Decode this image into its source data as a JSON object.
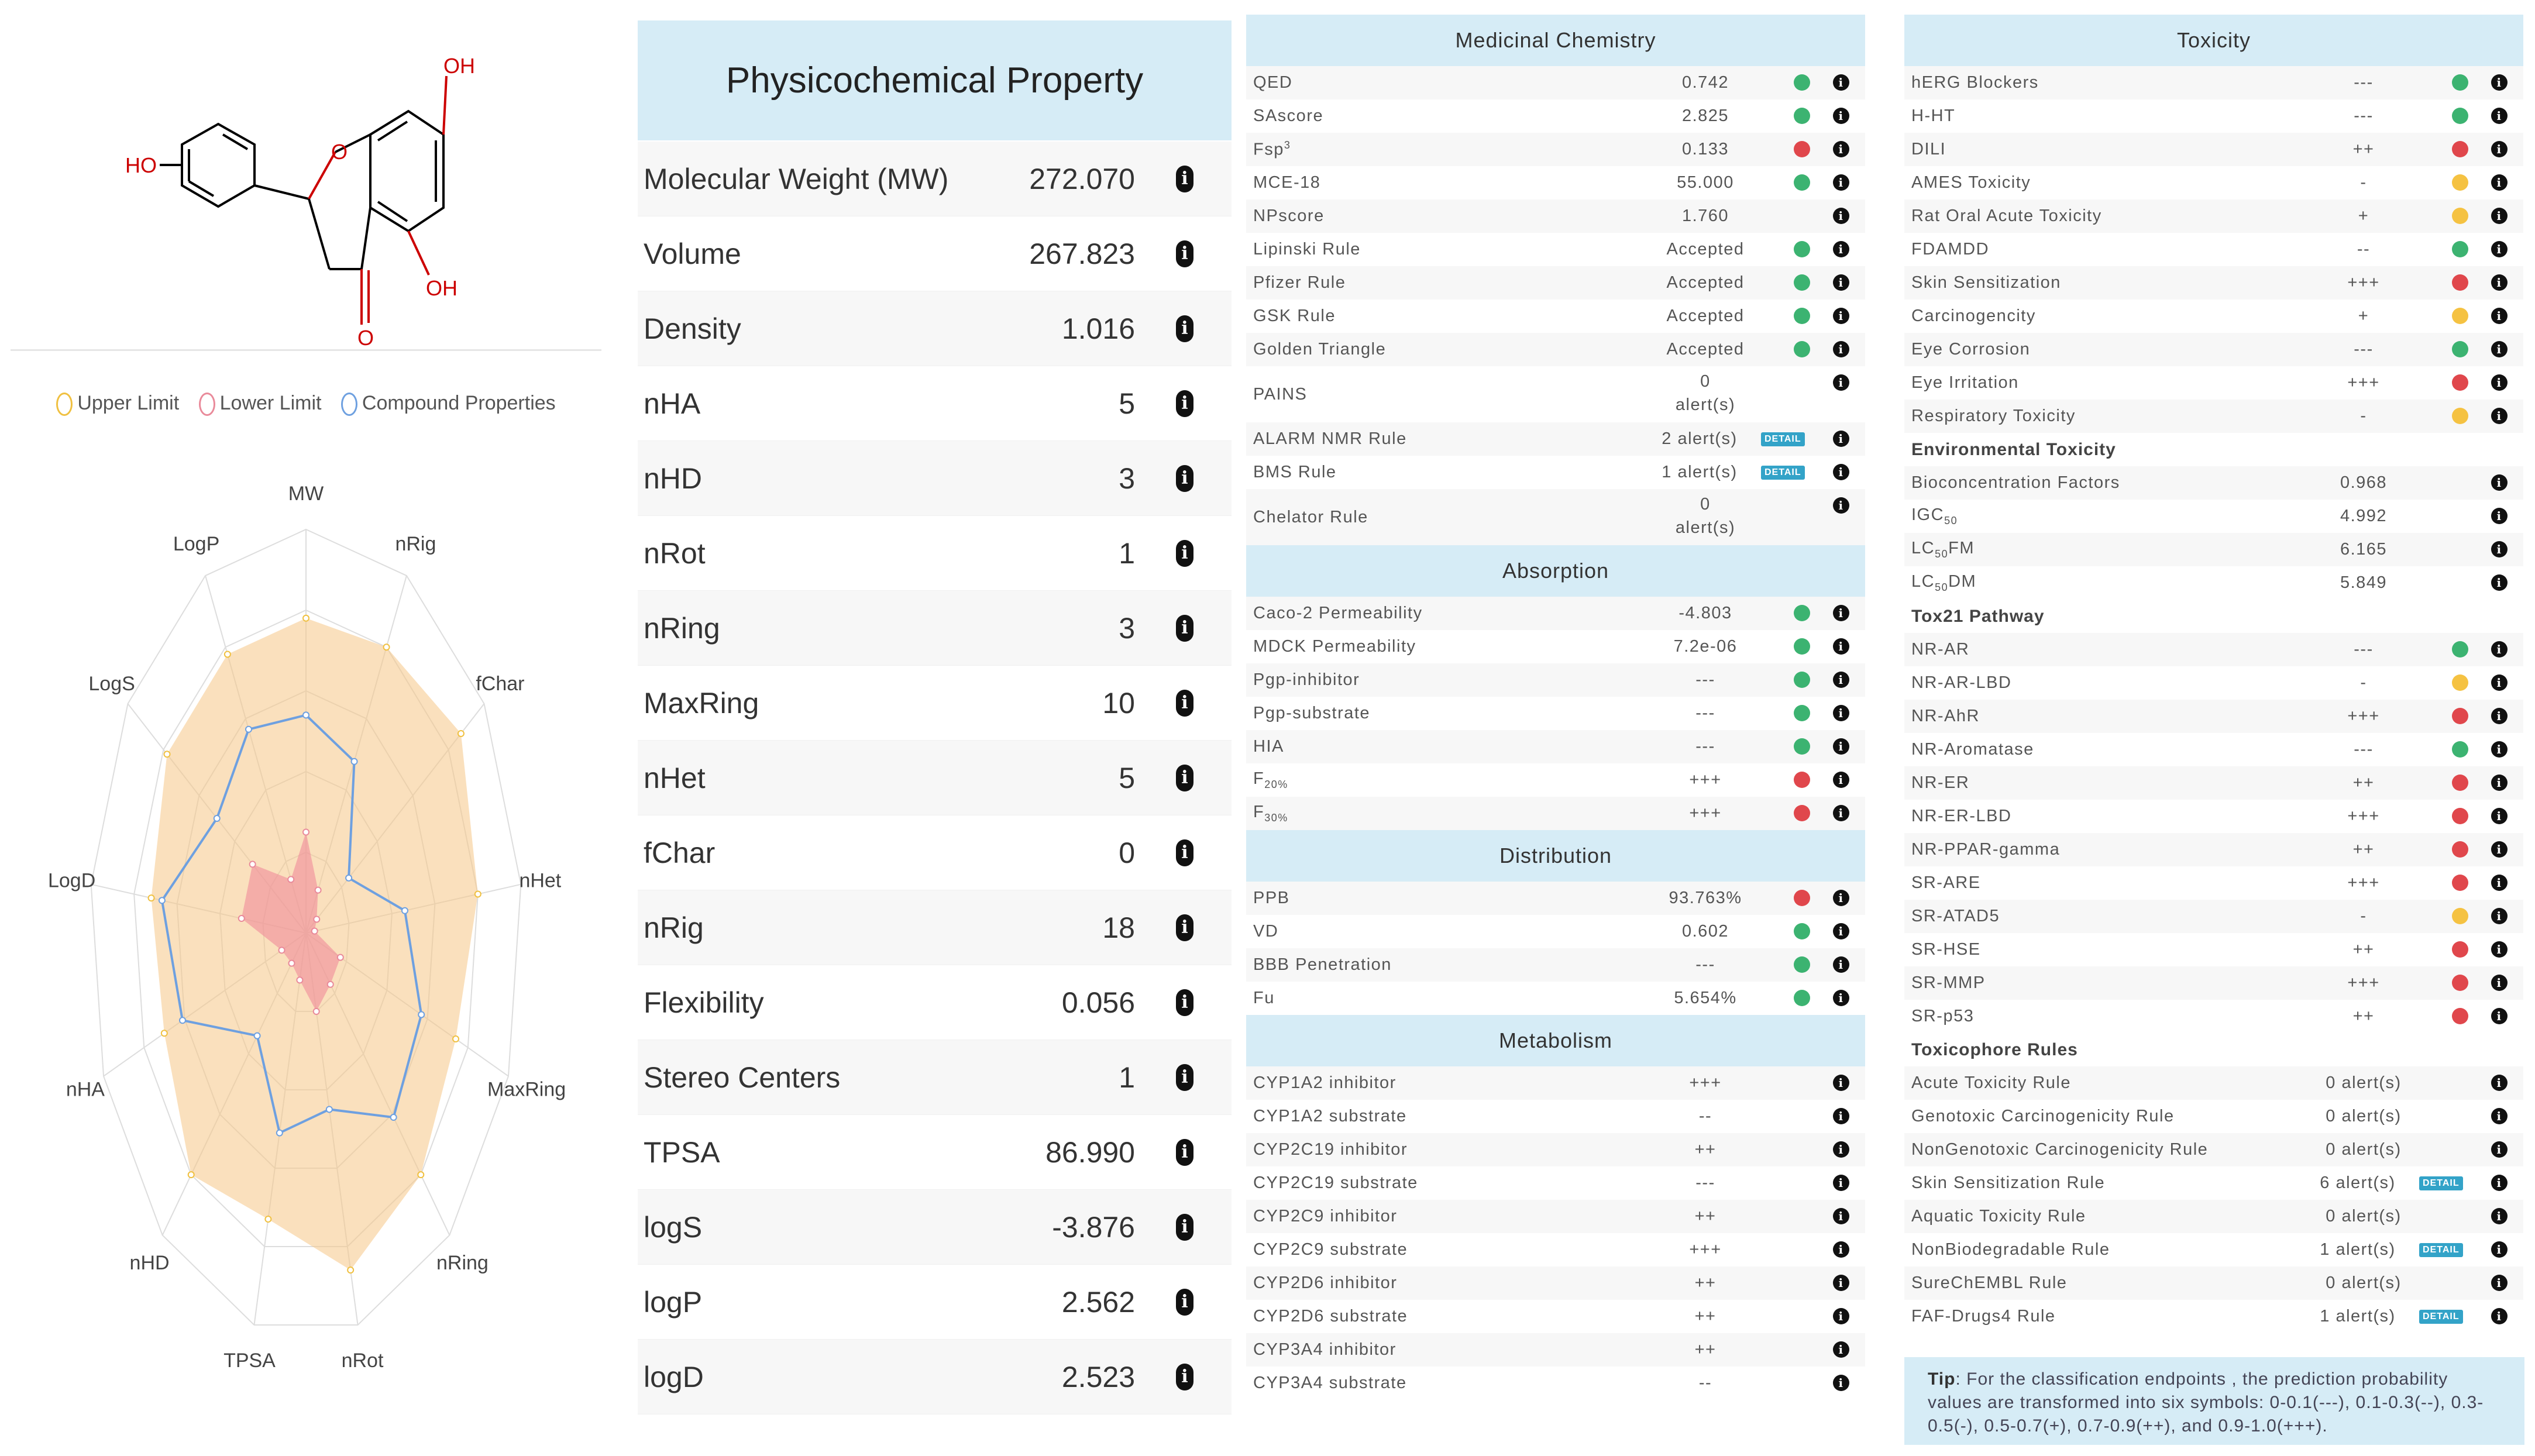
{
  "structure": {
    "labels": {
      "ho_left": "HO",
      "oh_top": "OH",
      "oh_bottom": "OH",
      "o_ring": "O",
      "o_keto": "O"
    }
  },
  "radar": {
    "legend": [
      {
        "label": "Upper Limit",
        "color": "#f0c040"
      },
      {
        "label": "Lower Limit",
        "color": "#e98a9a"
      },
      {
        "label": "Compound Properties",
        "color": "#6ea0e0"
      }
    ],
    "axes": [
      "MW",
      "nRig",
      "fChar",
      "nHet",
      "MaxRing",
      "nRing",
      "nRot",
      "TPSA",
      "nHD",
      "nHA",
      "LogD",
      "LogS",
      "LogP"
    ],
    "upper": [
      0.78,
      0.8,
      0.87,
      0.8,
      0.74,
      0.8,
      0.86,
      0.73,
      0.8,
      0.7,
      0.72,
      0.78,
      0.78
    ],
    "lower": [
      0.25,
      0.12,
      0.06,
      0.04,
      0.17,
      0.17,
      0.2,
      0.12,
      0.1,
      0.12,
      0.3,
      0.3,
      0.15
    ],
    "compound": [
      0.54,
      0.48,
      0.24,
      0.46,
      0.57,
      0.61,
      0.45,
      0.51,
      0.34,
      0.61,
      0.67,
      0.5,
      0.57
    ]
  },
  "physchem": {
    "title": "Physicochemical Property",
    "rows": [
      {
        "label": "Molecular Weight (MW)",
        "value": "272.070"
      },
      {
        "label": "Volume",
        "value": "267.823"
      },
      {
        "label": "Density",
        "value": "1.016"
      },
      {
        "label": "nHA",
        "value": "5"
      },
      {
        "label": "nHD",
        "value": "3"
      },
      {
        "label": "nRot",
        "value": "1"
      },
      {
        "label": "nRing",
        "value": "3"
      },
      {
        "label": "MaxRing",
        "value": "10"
      },
      {
        "label": "nHet",
        "value": "5"
      },
      {
        "label": "fChar",
        "value": "0"
      },
      {
        "label": "nRig",
        "value": "18"
      },
      {
        "label": "Flexibility",
        "value": "0.056"
      },
      {
        "label": "Stereo Centers",
        "value": "1"
      },
      {
        "label": "TPSA",
        "value": "86.990"
      },
      {
        "label": "logS",
        "value": "-3.876"
      },
      {
        "label": "logP",
        "value": "2.562"
      },
      {
        "label": "logD",
        "value": "2.523"
      }
    ]
  },
  "colors": {
    "green": "#3cb371",
    "red": "#e0474c",
    "yellow": "#f5c242",
    "header": "#d6ecf6",
    "detail": "#33a3c8"
  },
  "detail_label": "DETAIL",
  "medchem": {
    "title": "Medicinal Chemistry",
    "rows": [
      {
        "name": "QED",
        "value": "0.742",
        "dot": "green"
      },
      {
        "name": "SAscore",
        "value": "2.825",
        "dot": "green"
      },
      {
        "name": "Fsp",
        "sup": "3",
        "value": "0.133",
        "dot": "red"
      },
      {
        "name": "MCE-18",
        "value": "55.000",
        "dot": "green"
      },
      {
        "name": "NPscore",
        "value": "1.760",
        "dot": ""
      },
      {
        "name": "Lipinski Rule",
        "value": "Accepted",
        "dot": "green"
      },
      {
        "name": "Pfizer Rule",
        "value": "Accepted",
        "dot": "green"
      },
      {
        "name": "GSK Rule",
        "value": "Accepted",
        "dot": "green"
      },
      {
        "name": "Golden Triangle",
        "value": "Accepted",
        "dot": "green"
      },
      {
        "name": "PAINS",
        "value": "0",
        "value2": "alert(s)",
        "dot": "",
        "tall": true
      },
      {
        "name": "ALARM NMR Rule",
        "value": "2 alert(s)",
        "dot": "",
        "detail": true
      },
      {
        "name": "BMS Rule",
        "value": "1 alert(s)",
        "dot": "",
        "detail": true
      },
      {
        "name": "Chelator Rule",
        "value": "0",
        "value2": "alert(s)",
        "dot": "",
        "tall": true
      }
    ]
  },
  "absorption": {
    "title": "Absorption",
    "rows": [
      {
        "name": "Caco-2 Permeability",
        "value": "-4.803",
        "dot": "green"
      },
      {
        "name": "MDCK Permeability",
        "value": "7.2e-06",
        "dot": "green"
      },
      {
        "name": "Pgp-inhibitor",
        "value": "---",
        "dot": "green"
      },
      {
        "name": "Pgp-substrate",
        "value": "---",
        "dot": "green"
      },
      {
        "name": "HIA",
        "value": "---",
        "dot": "green"
      },
      {
        "name": "F",
        "sub": "20%",
        "value": "+++",
        "dot": "red"
      },
      {
        "name": "F",
        "sub": "30%",
        "value": "+++",
        "dot": "red"
      }
    ]
  },
  "distribution": {
    "title": "Distribution",
    "rows": [
      {
        "name": "PPB",
        "value": "93.763%",
        "dot": "red"
      },
      {
        "name": "VD",
        "value": "0.602",
        "dot": "green"
      },
      {
        "name": "BBB Penetration",
        "value": "---",
        "dot": "green"
      },
      {
        "name": "Fu",
        "value": "5.654%",
        "dot": "green"
      }
    ]
  },
  "metabolism": {
    "title": "Metabolism",
    "rows": [
      {
        "name": "CYP1A2 inhibitor",
        "value": "+++",
        "dot": ""
      },
      {
        "name": "CYP1A2 substrate",
        "value": "--",
        "dot": ""
      },
      {
        "name": "CYP2C19 inhibitor",
        "value": "++",
        "dot": ""
      },
      {
        "name": "CYP2C19 substrate",
        "value": "---",
        "dot": ""
      },
      {
        "name": "CYP2C9 inhibitor",
        "value": "++",
        "dot": ""
      },
      {
        "name": "CYP2C9 substrate",
        "value": "+++",
        "dot": ""
      },
      {
        "name": "CYP2D6 inhibitor",
        "value": "++",
        "dot": ""
      },
      {
        "name": "CYP2D6 substrate",
        "value": "++",
        "dot": ""
      },
      {
        "name": "CYP3A4 inhibitor",
        "value": "++",
        "dot": ""
      },
      {
        "name": "CYP3A4 substrate",
        "value": "--",
        "dot": ""
      }
    ]
  },
  "toxicity": {
    "title": "Toxicity",
    "rows": [
      {
        "name": "hERG Blockers",
        "value": "---",
        "dot": "green"
      },
      {
        "name": "H-HT",
        "value": "---",
        "dot": "green"
      },
      {
        "name": "DILI",
        "value": "++",
        "dot": "red"
      },
      {
        "name": "AMES Toxicity",
        "value": "-",
        "dot": "yellow"
      },
      {
        "name": "Rat Oral Acute Toxicity",
        "value": "+",
        "dot": "yellow"
      },
      {
        "name": "FDAMDD",
        "value": "--",
        "dot": "green"
      },
      {
        "name": "Skin Sensitization",
        "value": "+++",
        "dot": "red"
      },
      {
        "name": "Carcinogencity",
        "value": "+",
        "dot": "yellow"
      },
      {
        "name": "Eye Corrosion",
        "value": "---",
        "dot": "green"
      },
      {
        "name": "Eye Irritation",
        "value": "+++",
        "dot": "red"
      },
      {
        "name": "Respiratory Toxicity",
        "value": "-",
        "dot": "yellow"
      }
    ],
    "env_title": "Environmental Toxicity",
    "env_rows": [
      {
        "name": "Bioconcentration Factors",
        "value": "0.968",
        "dot": ""
      },
      {
        "name": "IGC",
        "sub": "50",
        "value": "4.992",
        "dot": ""
      },
      {
        "name": "LC",
        "sub": "50",
        "tail": "FM",
        "value": "6.165",
        "dot": ""
      },
      {
        "name": "LC",
        "sub": "50",
        "tail": "DM",
        "value": "5.849",
        "dot": ""
      }
    ],
    "tox21_title": "Tox21 Pathway",
    "tox21_rows": [
      {
        "name": "NR-AR",
        "value": "---",
        "dot": "green"
      },
      {
        "name": "NR-AR-LBD",
        "value": "-",
        "dot": "yellow"
      },
      {
        "name": "NR-AhR",
        "value": "+++",
        "dot": "red"
      },
      {
        "name": "NR-Aromatase",
        "value": "---",
        "dot": "green"
      },
      {
        "name": "NR-ER",
        "value": "++",
        "dot": "red"
      },
      {
        "name": "NR-ER-LBD",
        "value": "+++",
        "dot": "red"
      },
      {
        "name": "NR-PPAR-gamma",
        "value": "++",
        "dot": "red"
      },
      {
        "name": "SR-ARE",
        "value": "+++",
        "dot": "red"
      },
      {
        "name": "SR-ATAD5",
        "value": "-",
        "dot": "yellow"
      },
      {
        "name": "SR-HSE",
        "value": "++",
        "dot": "red"
      },
      {
        "name": "SR-MMP",
        "value": "+++",
        "dot": "red"
      },
      {
        "name": "SR-p53",
        "value": "++",
        "dot": "red"
      }
    ],
    "toxicophore_title": "Toxicophore Rules",
    "toxicophore_rows": [
      {
        "name": "Acute Toxicity Rule",
        "value": "0 alert(s)",
        "dot": ""
      },
      {
        "name": "Genotoxic Carcinogenicity Rule",
        "value": "0 alert(s)",
        "dot": ""
      },
      {
        "name": "NonGenotoxic Carcinogenicity Rule",
        "value": "0 alert(s)",
        "dot": ""
      },
      {
        "name": "Skin Sensitization Rule",
        "value": "6 alert(s)",
        "dot": "",
        "detail": true
      },
      {
        "name": "Aquatic Toxicity Rule",
        "value": "0 alert(s)",
        "dot": ""
      },
      {
        "name": "NonBiodegradable Rule",
        "value": "1 alert(s)",
        "dot": "",
        "detail": true
      },
      {
        "name": "SureChEMBL Rule",
        "value": "0 alert(s)",
        "dot": ""
      },
      {
        "name": "FAF-Drugs4 Rule",
        "value": "1 alert(s)",
        "dot": "",
        "detail": true
      }
    ]
  },
  "tip": {
    "label": "Tip",
    "text": ": For the classification endpoints , the prediction probability values are transformed into six symbols: 0-0.1(---), 0.1-0.3(--), 0.3-0.5(-), 0.5-0.7(+), 0.7-0.9(++), and 0.9-1.0(+++)."
  }
}
